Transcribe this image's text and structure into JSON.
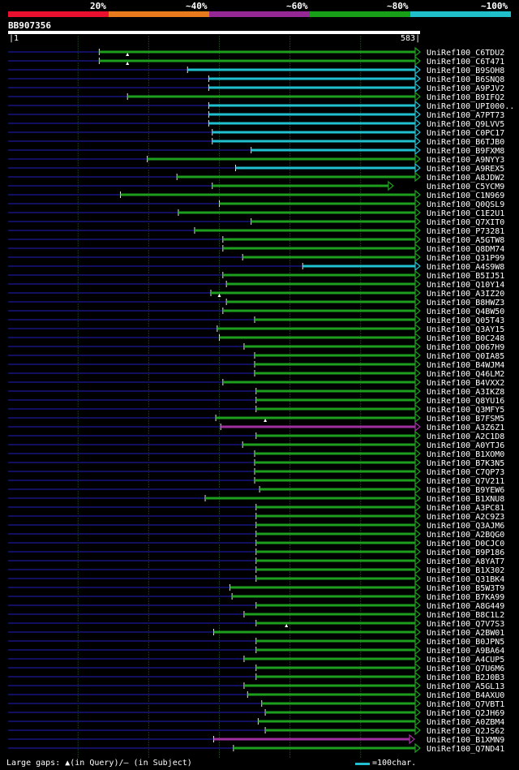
{
  "legend": {
    "labels": [
      "20%",
      "~40%",
      "~60%",
      "~80%",
      "~100%"
    ],
    "colors": [
      "#e8102e",
      "#e87a1e",
      "#962896",
      "#179f17",
      "#1fbfcc"
    ]
  },
  "query": {
    "id": "BB907356",
    "start": "1",
    "end": "583"
  },
  "footer": {
    "gaps": "Large gaps: ▲(in Query)/– (in Subject)",
    "scale": "=100char."
  },
  "chart_data": {
    "type": "alignment",
    "title": "BB907356",
    "x_range": [
      1,
      583
    ],
    "scale_label": "=100char.",
    "hits": [
      {
        "name": "UniRef100_C6TDU2",
        "start": 130,
        "end": 583,
        "color": "green",
        "query_gaps": [
          170
        ]
      },
      {
        "name": "UniRef100_C6T471",
        "start": 130,
        "end": 583,
        "color": "green",
        "query_gaps": [
          170
        ]
      },
      {
        "name": "UniRef100_B9SOH8",
        "start": 255,
        "end": 583,
        "color": "cyan"
      },
      {
        "name": "UniRef100_B6SNQ8",
        "start": 285,
        "end": 583,
        "color": "cyan"
      },
      {
        "name": "UniRef100_A9PJV2",
        "start": 285,
        "end": 583,
        "color": "cyan"
      },
      {
        "name": "UniRef100_B9IFQ2",
        "start": 170,
        "end": 583,
        "color": "green"
      },
      {
        "name": "UniRef100_UPI000..",
        "start": 285,
        "end": 583,
        "color": "cyan"
      },
      {
        "name": "UniRef100_A7PT73",
        "start": 285,
        "end": 583,
        "color": "cyan"
      },
      {
        "name": "UniRef100_Q9LVV5",
        "start": 285,
        "end": 583,
        "color": "cyan"
      },
      {
        "name": "UniRef100_C0PC17",
        "start": 290,
        "end": 583,
        "color": "cyan"
      },
      {
        "name": "UniRef100_B6TJB0",
        "start": 290,
        "end": 583,
        "color": "cyan"
      },
      {
        "name": "UniRef100_B9FXM8",
        "start": 345,
        "end": 583,
        "color": "cyan"
      },
      {
        "name": "UniRef100_A9NYY3",
        "start": 198,
        "end": 583,
        "color": "green"
      },
      {
        "name": "UniRef100_A9REX5",
        "start": 323,
        "end": 583,
        "color": "cyan"
      },
      {
        "name": "UniRef100_A8JDW2",
        "start": 240,
        "end": 583,
        "color": "green"
      },
      {
        "name": "UniRef100_C5YCM9",
        "start": 290,
        "end": 545,
        "color": "green"
      },
      {
        "name": "UniRef100_C1N969",
        "start": 160,
        "end": 583,
        "color": "green"
      },
      {
        "name": "UniRef100_Q0QSL9",
        "start": 300,
        "end": 583,
        "color": "green"
      },
      {
        "name": "UniRef100_C1E2U1",
        "start": 242,
        "end": 583,
        "color": "green"
      },
      {
        "name": "UniRef100_Q7XIT0",
        "start": 345,
        "end": 583,
        "color": "green"
      },
      {
        "name": "UniRef100_P73281",
        "start": 265,
        "end": 583,
        "color": "green"
      },
      {
        "name": "UniRef100_A5GTW8",
        "start": 305,
        "end": 583,
        "color": "green"
      },
      {
        "name": "UniRef100_Q8DM74",
        "start": 305,
        "end": 583,
        "color": "green"
      },
      {
        "name": "UniRef100_Q31P99",
        "start": 333,
        "end": 583,
        "color": "green"
      },
      {
        "name": "UniRef100_A4S9W8",
        "start": 418,
        "end": 583,
        "color": "cyan"
      },
      {
        "name": "UniRef100_B5IJ51",
        "start": 305,
        "end": 583,
        "color": "green"
      },
      {
        "name": "UniRef100_Q10Y14",
        "start": 310,
        "end": 583,
        "color": "green"
      },
      {
        "name": "UniRef100_A3IZ20",
        "start": 288,
        "end": 583,
        "color": "green",
        "query_gaps": [
          300
        ]
      },
      {
        "name": "UniRef100_B8HWZ3",
        "start": 310,
        "end": 583,
        "color": "green"
      },
      {
        "name": "UniRef100_Q4BW50",
        "start": 305,
        "end": 583,
        "color": "green"
      },
      {
        "name": "UniRef100_Q05T43",
        "start": 350,
        "end": 583,
        "color": "green"
      },
      {
        "name": "UniRef100_Q3AY15",
        "start": 297,
        "end": 583,
        "color": "green"
      },
      {
        "name": "UniRef100_B0C248",
        "start": 300,
        "end": 583,
        "color": "green"
      },
      {
        "name": "UniRef100_Q067H9",
        "start": 335,
        "end": 583,
        "color": "green"
      },
      {
        "name": "UniRef100_Q0IA85",
        "start": 350,
        "end": 583,
        "color": "green"
      },
      {
        "name": "UniRef100_B4WJM4",
        "start": 350,
        "end": 583,
        "color": "green"
      },
      {
        "name": "UniRef100_Q46LM2",
        "start": 350,
        "end": 583,
        "color": "green"
      },
      {
        "name": "UniRef100_B4VXX2",
        "start": 305,
        "end": 583,
        "color": "green"
      },
      {
        "name": "UniRef100_A3IKZ8",
        "start": 352,
        "end": 583,
        "color": "green"
      },
      {
        "name": "UniRef100_Q8YU16",
        "start": 352,
        "end": 583,
        "color": "green"
      },
      {
        "name": "UniRef100_Q3MFY5",
        "start": 352,
        "end": 583,
        "color": "green"
      },
      {
        "name": "UniRef100_B7FSM5",
        "start": 295,
        "end": 583,
        "color": "green",
        "query_gaps": [
          365
        ]
      },
      {
        "name": "UniRef100_A3Z6Z1",
        "start": 302,
        "end": 583,
        "color": "purple"
      },
      {
        "name": "UniRef100_A2C1D8",
        "start": 352,
        "end": 583,
        "color": "green"
      },
      {
        "name": "UniRef100_A0YTJ6",
        "start": 333,
        "end": 583,
        "color": "green"
      },
      {
        "name": "UniRef100_B1XOM0",
        "start": 350,
        "end": 583,
        "color": "green"
      },
      {
        "name": "UniRef100_B7K3N5",
        "start": 350,
        "end": 583,
        "color": "green"
      },
      {
        "name": "UniRef100_C7QP73",
        "start": 350,
        "end": 583,
        "color": "green"
      },
      {
        "name": "UniRef100_Q7V211",
        "start": 350,
        "end": 583,
        "color": "green"
      },
      {
        "name": "UniRef100_B9YEW6",
        "start": 357,
        "end": 583,
        "color": "green"
      },
      {
        "name": "UniRef100_B1XNU8",
        "start": 280,
        "end": 583,
        "color": "green"
      },
      {
        "name": "UniRef100_A3PC81",
        "start": 352,
        "end": 583,
        "color": "green"
      },
      {
        "name": "UniRef100_A2C9Z3",
        "start": 352,
        "end": 583,
        "color": "green"
      },
      {
        "name": "UniRef100_Q3AJM6",
        "start": 352,
        "end": 583,
        "color": "green"
      },
      {
        "name": "UniRef100_A2BQG0",
        "start": 352,
        "end": 583,
        "color": "green"
      },
      {
        "name": "UniRef100_D0CJC0",
        "start": 352,
        "end": 583,
        "color": "green"
      },
      {
        "name": "UniRef100_B9P186",
        "start": 352,
        "end": 583,
        "color": "green"
      },
      {
        "name": "UniRef100_A8YAT7",
        "start": 352,
        "end": 583,
        "color": "green"
      },
      {
        "name": "UniRef100_B1X302",
        "start": 352,
        "end": 583,
        "color": "green"
      },
      {
        "name": "UniRef100_Q31BK4",
        "start": 352,
        "end": 583,
        "color": "green"
      },
      {
        "name": "UniRef100_B5W3T9",
        "start": 315,
        "end": 583,
        "color": "green"
      },
      {
        "name": "UniRef100_B7KA99",
        "start": 318,
        "end": 583,
        "color": "green"
      },
      {
        "name": "UniRef100_A8G449",
        "start": 352,
        "end": 583,
        "color": "green"
      },
      {
        "name": "UniRef100_B8C1L2",
        "start": 335,
        "end": 583,
        "color": "green"
      },
      {
        "name": "UniRef100_Q7V7S3",
        "start": 352,
        "end": 583,
        "color": "green",
        "query_gaps": [
          395
        ]
      },
      {
        "name": "UniRef100_A2BW01",
        "start": 292,
        "end": 583,
        "color": "green"
      },
      {
        "name": "UniRef100_B0JPN5",
        "start": 352,
        "end": 583,
        "color": "green"
      },
      {
        "name": "UniRef100_A9BA64",
        "start": 352,
        "end": 583,
        "color": "green"
      },
      {
        "name": "UniRef100_A4CUP5",
        "start": 335,
        "end": 583,
        "color": "green"
      },
      {
        "name": "UniRef100_Q7U6M6",
        "start": 352,
        "end": 583,
        "color": "green"
      },
      {
        "name": "UniRef100_B2J0B3",
        "start": 352,
        "end": 583,
        "color": "green"
      },
      {
        "name": "UniRef100_A5GL13",
        "start": 335,
        "end": 583,
        "color": "green"
      },
      {
        "name": "UniRef100_B4AXU0",
        "start": 340,
        "end": 583,
        "color": "green"
      },
      {
        "name": "UniRef100_Q7VBT1",
        "start": 360,
        "end": 583,
        "color": "green"
      },
      {
        "name": "UniRef100_Q2JH69",
        "start": 365,
        "end": 583,
        "color": "green"
      },
      {
        "name": "UniRef100_A0ZBM4",
        "start": 355,
        "end": 583,
        "color": "green"
      },
      {
        "name": "UniRef100_Q2JS62",
        "start": 365,
        "end": 583,
        "color": "green"
      },
      {
        "name": "UniRef100_B1XMN9",
        "start": 292,
        "end": 575,
        "color": "purple"
      },
      {
        "name": "UniRef100_Q7ND41",
        "start": 320,
        "end": 583,
        "color": "green"
      }
    ]
  }
}
